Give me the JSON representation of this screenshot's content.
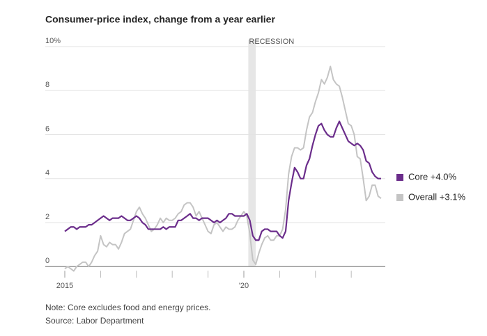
{
  "chart_data": {
    "type": "line",
    "title": "Consumer-price index, change from a year earlier",
    "notes": [
      "Note: Core excludes food and energy prices.",
      "Source: Labor Department"
    ],
    "recession": {
      "label": "RECESSION",
      "start": 2020.125,
      "end": 2020.333
    },
    "x": [
      2015,
      2015.083,
      2015.167,
      2015.25,
      2015.333,
      2015.417,
      2015.5,
      2015.583,
      2015.667,
      2015.75,
      2015.833,
      2015.917,
      2016,
      2016.083,
      2016.167,
      2016.25,
      2016.333,
      2016.417,
      2016.5,
      2016.583,
      2016.667,
      2016.75,
      2016.833,
      2016.917,
      2017,
      2017.083,
      2017.167,
      2017.25,
      2017.333,
      2017.417,
      2017.5,
      2017.583,
      2017.667,
      2017.75,
      2017.833,
      2017.917,
      2018,
      2018.083,
      2018.167,
      2018.25,
      2018.333,
      2018.417,
      2018.5,
      2018.583,
      2018.667,
      2018.75,
      2018.833,
      2018.917,
      2019,
      2019.083,
      2019.167,
      2019.25,
      2019.333,
      2019.417,
      2019.5,
      2019.583,
      2019.667,
      2019.75,
      2019.833,
      2019.917,
      2020,
      2020.083,
      2020.167,
      2020.25,
      2020.333,
      2020.417,
      2020.5,
      2020.583,
      2020.667,
      2020.75,
      2020.833,
      2020.917,
      2021,
      2021.083,
      2021.167,
      2021.25,
      2021.333,
      2021.417,
      2021.5,
      2021.583,
      2021.667,
      2021.75,
      2021.833,
      2021.917,
      2022,
      2022.083,
      2022.167,
      2022.25,
      2022.333,
      2022.417,
      2022.5,
      2022.583,
      2022.667,
      2022.75,
      2022.833,
      2022.917,
      2023,
      2023.083,
      2023.167,
      2023.25,
      2023.333,
      2023.417,
      2023.5,
      2023.583,
      2023.667,
      2023.75,
      2023.833
    ],
    "series": [
      {
        "name": "Core +4.0%",
        "color": "#6b2d8b",
        "values": [
          1.6,
          1.7,
          1.8,
          1.8,
          1.7,
          1.8,
          1.8,
          1.8,
          1.9,
          1.9,
          2.0,
          2.1,
          2.2,
          2.3,
          2.2,
          2.1,
          2.2,
          2.2,
          2.2,
          2.3,
          2.2,
          2.1,
          2.1,
          2.2,
          2.3,
          2.2,
          2.0,
          1.9,
          1.7,
          1.7,
          1.7,
          1.7,
          1.7,
          1.8,
          1.7,
          1.8,
          1.8,
          1.8,
          2.1,
          2.1,
          2.2,
          2.3,
          2.4,
          2.2,
          2.2,
          2.1,
          2.2,
          2.2,
          2.2,
          2.1,
          2.0,
          2.1,
          2.0,
          2.1,
          2.2,
          2.4,
          2.4,
          2.3,
          2.3,
          2.3,
          2.3,
          2.4,
          2.1,
          1.4,
          1.2,
          1.2,
          1.6,
          1.7,
          1.7,
          1.6,
          1.6,
          1.6,
          1.4,
          1.3,
          1.6,
          3.0,
          3.8,
          4.5,
          4.3,
          4.0,
          4.0,
          4.6,
          4.9,
          5.5,
          6.0,
          6.4,
          6.5,
          6.2,
          6.0,
          5.9,
          5.9,
          6.3,
          6.6,
          6.3,
          6.0,
          5.7,
          5.6,
          5.5,
          5.6,
          5.5,
          5.3,
          4.8,
          4.7,
          4.3,
          4.1,
          4.0,
          4.0
        ]
      },
      {
        "name": "Overall +3.1%",
        "color": "#c4c4c4",
        "values": [
          -0.1,
          0.0,
          -0.1,
          -0.2,
          0.0,
          0.1,
          0.2,
          0.2,
          0.0,
          0.2,
          0.5,
          0.7,
          1.4,
          1.0,
          0.9,
          1.1,
          1.0,
          1.0,
          0.8,
          1.1,
          1.5,
          1.6,
          1.7,
          2.1,
          2.5,
          2.7,
          2.4,
          2.2,
          1.9,
          1.6,
          1.7,
          1.9,
          2.2,
          2.0,
          2.2,
          2.1,
          2.1,
          2.2,
          2.4,
          2.5,
          2.8,
          2.9,
          2.9,
          2.7,
          2.3,
          2.5,
          2.2,
          1.9,
          1.6,
          1.5,
          1.9,
          2.0,
          1.8,
          1.6,
          1.8,
          1.7,
          1.7,
          1.8,
          2.1,
          2.3,
          2.5,
          2.3,
          1.5,
          0.3,
          0.1,
          0.6,
          1.0,
          1.3,
          1.4,
          1.2,
          1.2,
          1.4,
          1.4,
          1.7,
          2.6,
          4.2,
          5.0,
          5.4,
          5.4,
          5.3,
          5.4,
          6.2,
          6.8,
          7.0,
          7.5,
          7.9,
          8.5,
          8.3,
          8.6,
          9.1,
          8.5,
          8.3,
          8.2,
          7.7,
          7.1,
          6.5,
          6.4,
          6.0,
          5.0,
          4.9,
          4.0,
          3.0,
          3.2,
          3.7,
          3.7,
          3.2,
          3.1
        ]
      }
    ],
    "xlim": [
      2014.455,
      2023.95
    ],
    "xticks": [
      2015,
      {
        "value": 2020,
        "label": "'20"
      }
    ],
    "xminorticks": [
      2016,
      2017,
      2018,
      2019,
      2021,
      2022,
      2023
    ],
    "ylim": [
      -0.5,
      10
    ],
    "yticks": [
      0,
      2,
      4,
      6,
      8,
      {
        "value": 10,
        "label": "10%"
      }
    ],
    "grid": true
  }
}
